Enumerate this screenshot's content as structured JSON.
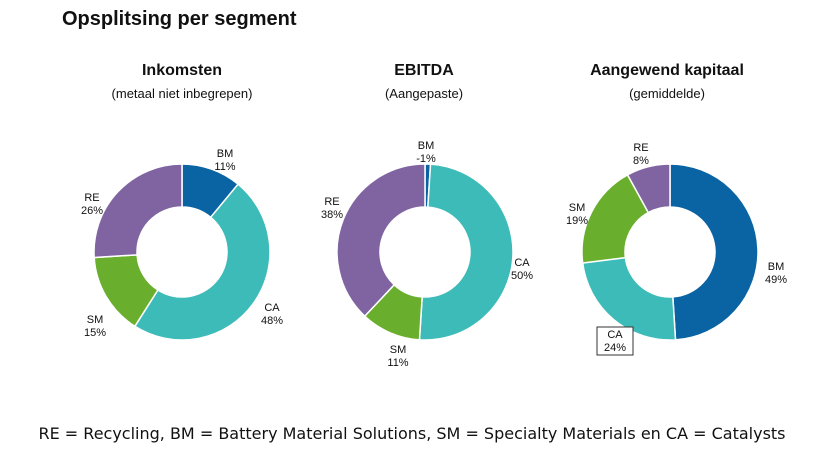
{
  "page": {
    "title": "Opsplitsing per segment",
    "footnote": "RE = Recycling, BM = Battery Material Solutions, SM = Specialty Materials en CA = Catalysts"
  },
  "colors": {
    "BM": "#0a64a4",
    "CA": "#3dbbb8",
    "SM": "#6aae2e",
    "RE": "#8064a2"
  },
  "chart_data": [
    {
      "type": "pie",
      "title": "Inkomsten",
      "subtitle": "(metaal niet inbegrepen)",
      "categories": [
        "BM",
        "CA",
        "SM",
        "RE"
      ],
      "values": [
        11,
        48,
        15,
        26
      ],
      "labels": [
        "11%",
        "48%",
        "15%",
        "26%"
      ],
      "donut": true
    },
    {
      "type": "pie",
      "title": "EBITDA",
      "subtitle": "(Aangepaste)",
      "categories": [
        "BM",
        "CA",
        "SM",
        "RE"
      ],
      "values": [
        -1,
        50,
        11,
        38
      ],
      "labels": [
        "-1%",
        "50%",
        "11%",
        "38%"
      ],
      "donut": true
    },
    {
      "type": "pie",
      "title": "Aangewend kapitaal",
      "subtitle": "(gemiddelde)",
      "categories": [
        "BM",
        "CA",
        "SM",
        "RE"
      ],
      "values": [
        49,
        24,
        19,
        8
      ],
      "labels": [
        "49%",
        "24%",
        "19%",
        "8%"
      ],
      "donut": true,
      "boxed_label": "CA"
    }
  ]
}
